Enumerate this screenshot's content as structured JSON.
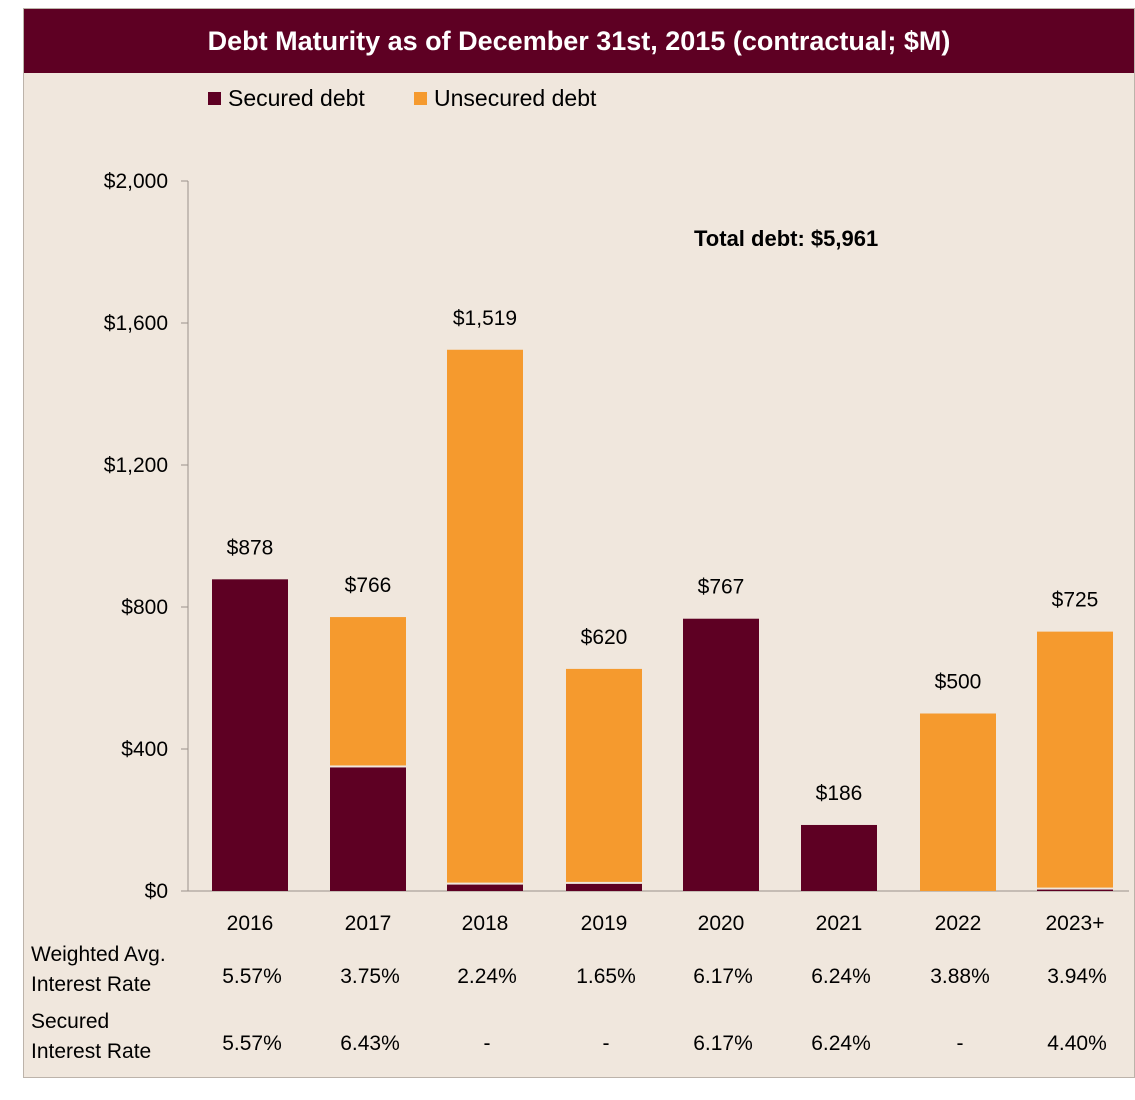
{
  "title": "Debt Maturity as of December 31st, 2015 (contractual; $M)",
  "annotation": "Total debt: $5,961",
  "colors": {
    "secured": "#5e0023",
    "unsecured": "#f59a2e",
    "title_bg": "#5e0023",
    "panel_bg": "#f0e7dd"
  },
  "chart_data": {
    "type": "bar",
    "stacked": true,
    "title": "Debt Maturity as of December 31st, 2015 (contractual; $M)",
    "categories": [
      "2016",
      "2017",
      "2018",
      "2019",
      "2020",
      "2021",
      "2022",
      "2023+"
    ],
    "series": [
      {
        "name": "Secured debt",
        "values": [
          878,
          348,
          18,
          20,
          767,
          186,
          0,
          4
        ]
      },
      {
        "name": "Unsecured debt",
        "values": [
          0,
          418,
          1501,
          600,
          0,
          0,
          500,
          721
        ]
      }
    ],
    "totals": [
      "$878",
      "$766",
      "$1,519",
      "$620",
      "$767",
      "$186",
      "$500",
      "$725"
    ],
    "ylim": [
      0,
      2000
    ],
    "yticks": [
      0,
      400,
      800,
      1200,
      1600,
      2000
    ],
    "ytick_labels": [
      "$0",
      "$400",
      "$800",
      "$1,200",
      "$1,600",
      "$2,000"
    ],
    "legend_position": "top-left",
    "grid": false
  },
  "rate_rows": [
    {
      "label": [
        "Weighted Avg.",
        "Interest Rate"
      ],
      "values": [
        "5.57%",
        "3.75%",
        "2.24%",
        "1.65%",
        "6.17%",
        "6.24%",
        "3.88%",
        "3.94%"
      ]
    },
    {
      "label": [
        "Secured",
        "Interest Rate"
      ],
      "values": [
        "5.57%",
        "6.43%",
        "-",
        "-",
        "6.17%",
        "6.24%",
        "-",
        "4.40%"
      ]
    }
  ]
}
